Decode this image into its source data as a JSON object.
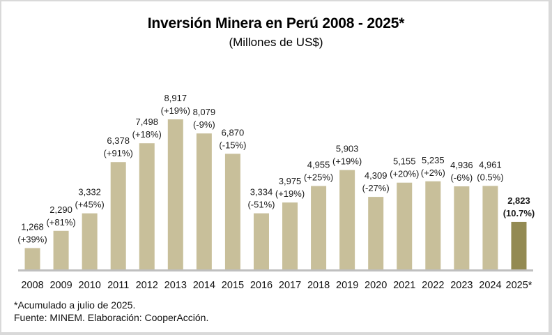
{
  "chart_data": {
    "type": "bar",
    "title": "Inversión Minera en Perú 2008 - 2025*",
    "subtitle": "(Millones de US$)",
    "xlabel": "",
    "ylabel": "",
    "ylim": [
      0,
      9500
    ],
    "grid": false,
    "legend": "none",
    "categories": [
      "2008",
      "2009",
      "2010",
      "2011",
      "2012",
      "2013",
      "2014",
      "2015",
      "2016",
      "2017",
      "2018",
      "2019",
      "2020",
      "2021",
      "2022",
      "2023",
      "2024",
      "2025*"
    ],
    "values": [
      1268,
      2290,
      3332,
      6378,
      7498,
      8917,
      8079,
      6870,
      3334,
      3975,
      4955,
      5903,
      4309,
      5155,
      5235,
      4936,
      4961,
      2823
    ],
    "value_labels": [
      "1,268",
      "2,290",
      "3,332",
      "6,378",
      "7,498",
      "8,917",
      "8,079",
      "6,870",
      "3,334",
      "3,975",
      "4,955",
      "5,903",
      "4,309",
      "5,155",
      "5,235",
      "4,936",
      "4,961",
      "2,823"
    ],
    "change_labels": [
      "(+39%)",
      "(+81%)",
      "(+45%)",
      "(+91%)",
      "(+18%)",
      "(+19%)",
      "(-9%)",
      "(-15%)",
      "(-51%)",
      "(+19%)",
      "(+25%)",
      "(+19%)",
      "(-27%)",
      "(+20%)",
      "(+2%)",
      "(-6%)",
      "(0.5%)",
      "(10.7%)"
    ],
    "highlight_index": 17,
    "colors": {
      "bar": "#c8bf9a",
      "highlight": "#938a52",
      "axis": "#bfbfbf"
    }
  },
  "notes": {
    "footnote": "*Acumulado a julio de 2025.",
    "source": "Fuente: MINEM. Elaboración: CooperAcción."
  }
}
